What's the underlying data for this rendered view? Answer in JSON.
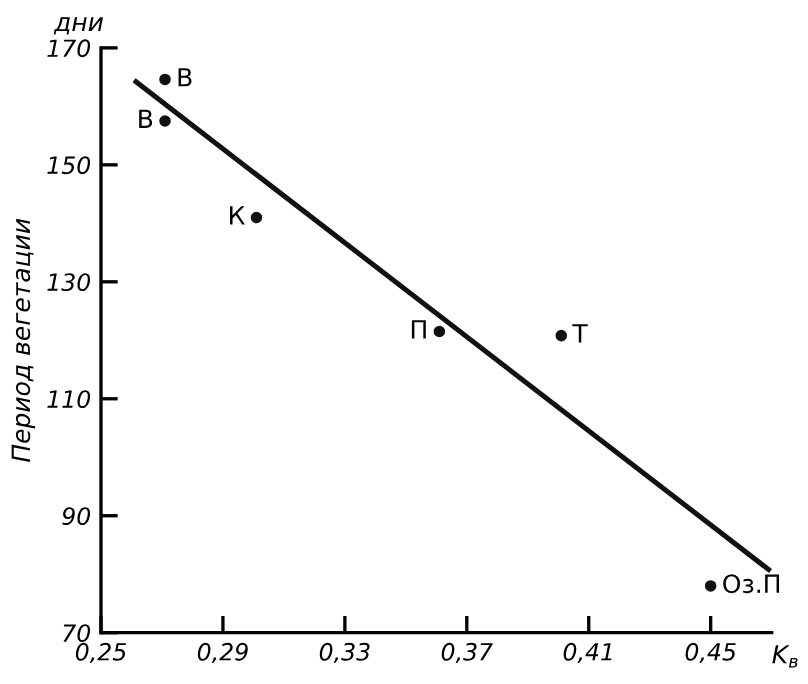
{
  "chart_data": {
    "type": "scatter",
    "xlabel": "K$_{в}$",
    "ylabel": "Период вегетации",
    "subtitle": "дни",
    "series": [
      {
        "color": "#111111",
        "marker": "circle",
        "x": [
          0.271,
          0.271,
          0.301,
          0.361,
          0.401,
          0.45
        ],
        "values": [
          164.6,
          157.5,
          141,
          121.5,
          120.8,
          78
        ]
      },
      {
        "type": "line",
        "color": "#111111",
        "line_style": "solid",
        "marker": "none",
        "x": [
          0.2615,
          0.469
        ],
        "values": [
          164.2,
          80.8
        ]
      }
    ],
    "annotations": [
      {
        "text": "В",
        "x": 0.271,
        "y": 164.6
      },
      {
        "text": "В",
        "x": 0.271,
        "y": 157.5
      },
      {
        "text": "К",
        "x": 0.301,
        "y": 141
      },
      {
        "text": "П",
        "x": 0.361,
        "y": 121.5
      },
      {
        "text": "Т",
        "x": 0.401,
        "y": 120.8
      },
      {
        "text": "Оз.П",
        "x": 0.45,
        "y": 78
      }
    ],
    "xlim": [
      0.25,
      0.47
    ],
    "ylim": [
      70,
      170
    ],
    "xticks": [
      {
        "value": 0.25,
        "label": "0,25"
      },
      {
        "value": 0.29,
        "label": "0,29"
      },
      {
        "value": 0.33,
        "label": "0,33"
      },
      {
        "value": 0.37,
        "label": "0,37"
      },
      {
        "value": 0.41,
        "label": "0,41"
      },
      {
        "value": 0.45,
        "label": "0,45"
      }
    ],
    "yticks": [
      70,
      90,
      110,
      130,
      150,
      170
    ],
    "grid": false,
    "legend": false
  }
}
